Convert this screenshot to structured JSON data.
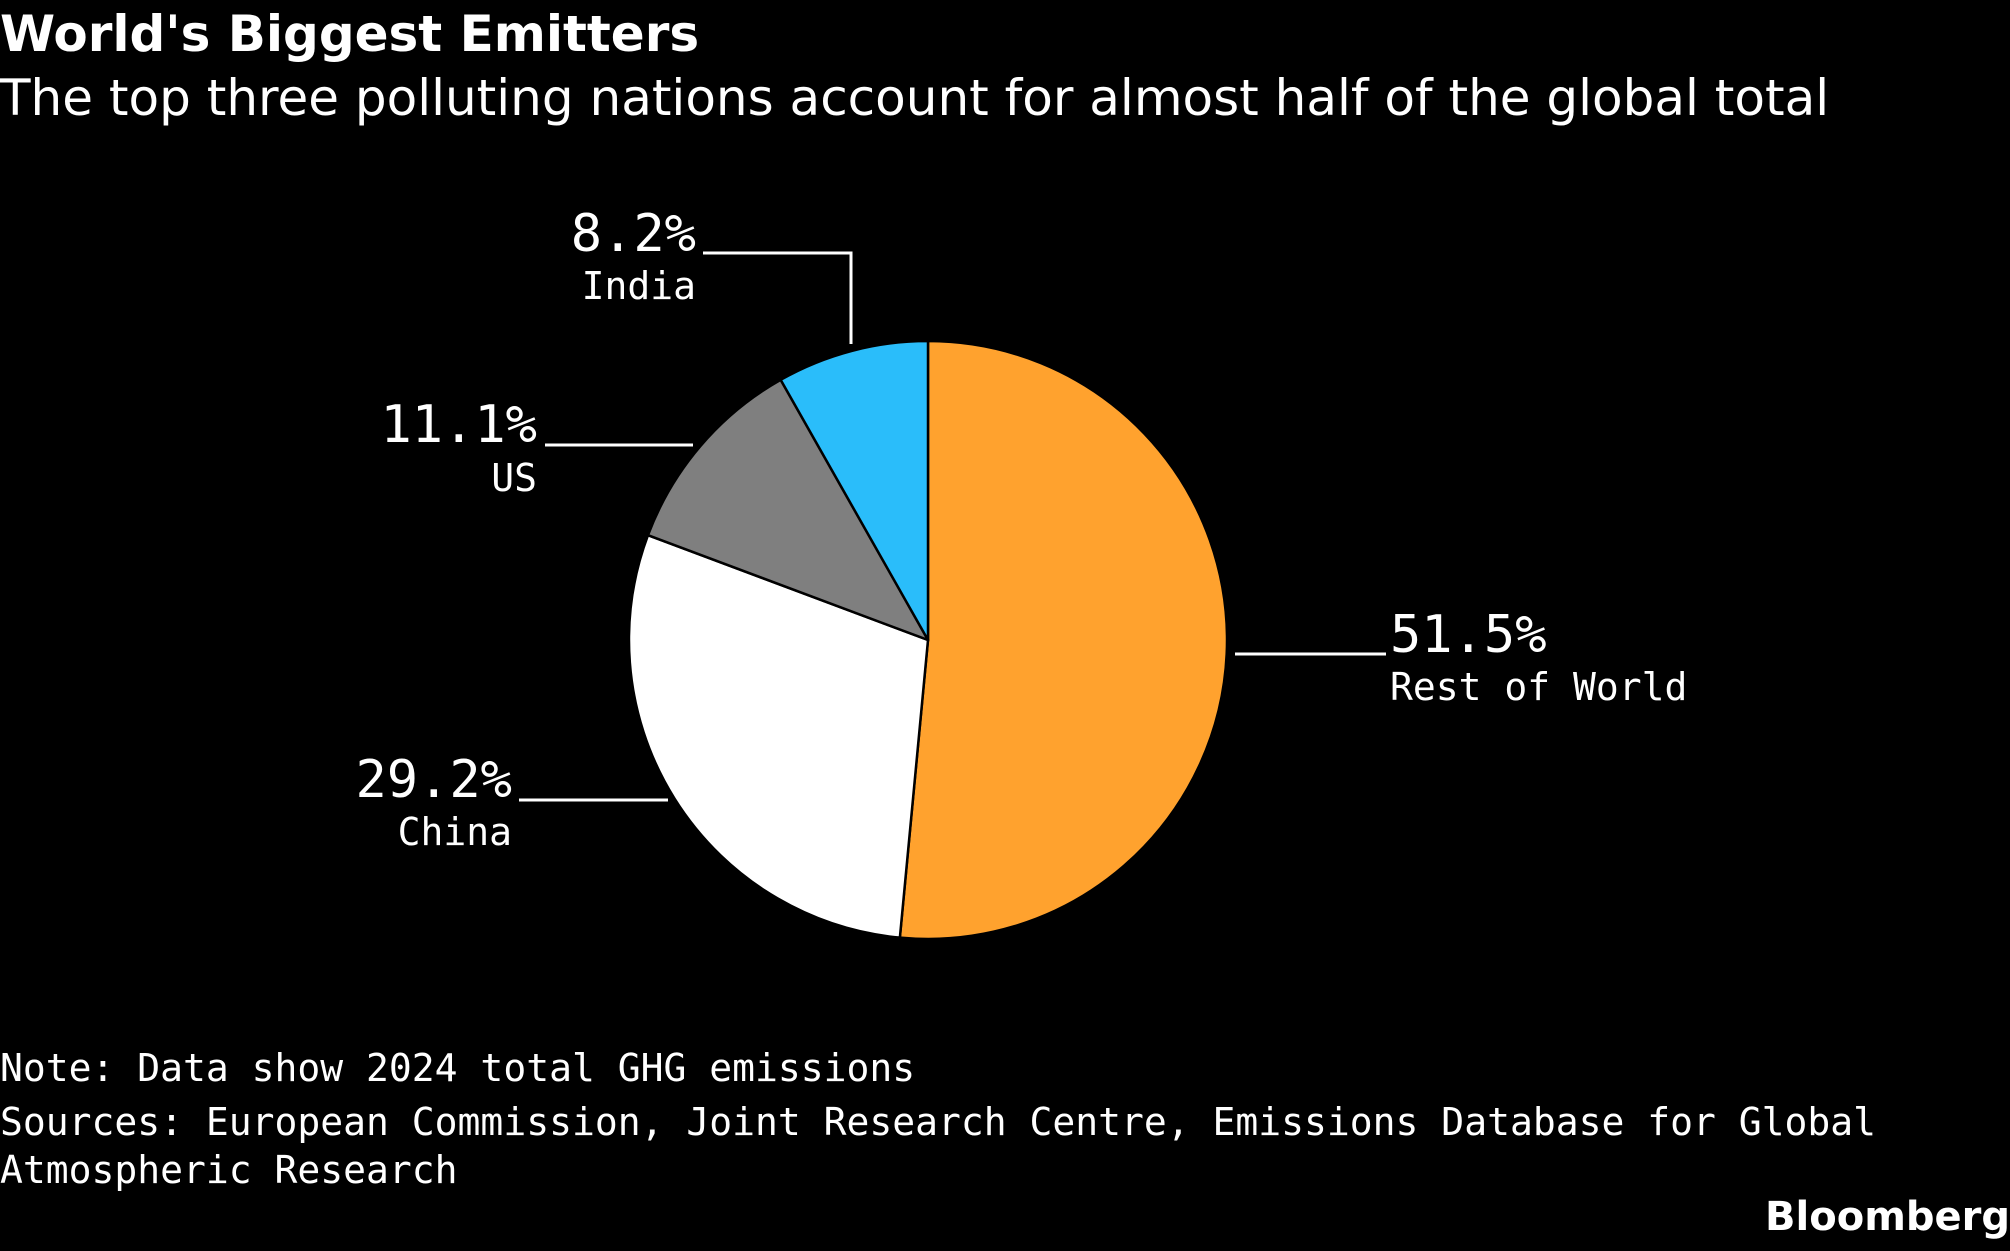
{
  "header": {
    "title": "World's Biggest Emitters",
    "subtitle": "The top three polluting nations account for almost half of the global total"
  },
  "chart_data": {
    "type": "pie",
    "title": "World's Biggest Emitters",
    "subtitle": "The top three polluting nations account for almost half of the global total",
    "slices": [
      {
        "label": "Rest of World",
        "value": 51.5,
        "value_label": "51.5%",
        "color": "#ffa22e"
      },
      {
        "label": "China",
        "value": 29.2,
        "value_label": "29.2%",
        "color": "#ffffff"
      },
      {
        "label": "US",
        "value": 11.1,
        "value_label": "11.1%",
        "color": "#7f7f7f"
      },
      {
        "label": "India",
        "value": 8.2,
        "value_label": "8.2%",
        "color": "#2abdfa"
      }
    ],
    "start": "12 o'clock",
    "direction": "clockwise"
  },
  "footer": {
    "note": "Note: Data show 2024 total GHG emissions",
    "sources": "Sources: European Commission, Joint Research Centre, Emissions Database for Global Atmospheric Research",
    "brand": "Bloomberg"
  },
  "colors": {
    "background": "#000000",
    "text": "#ffffff",
    "slice_border": "#000000"
  }
}
